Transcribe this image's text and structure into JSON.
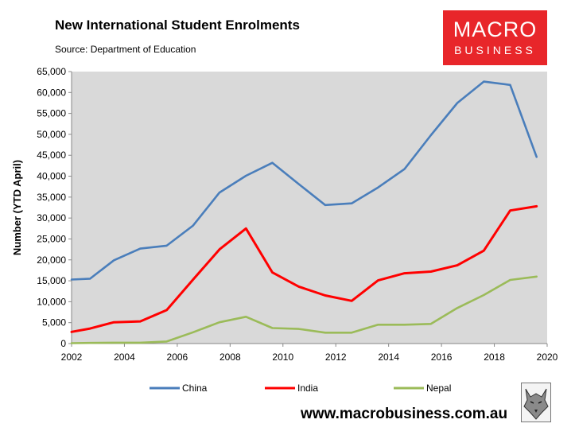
{
  "header": {
    "title": "New International Student Enrolments",
    "source": "Source: Department of Education"
  },
  "logo": {
    "line1": "MACRO",
    "line2": "BUSINESS",
    "bg_color": "#e8262a"
  },
  "footer": {
    "url": "www.macrobusiness.com.au",
    "wolf_icon": "wolf-logo-icon"
  },
  "chart_data": {
    "type": "line",
    "ylabel": "Number (YTD April)",
    "xlabel": "",
    "x": [
      2002,
      2002.7,
      2003.6,
      2004.6,
      2005.6,
      2006.6,
      2007.6,
      2008.6,
      2009.6,
      2010.6,
      2011.6,
      2012.6,
      2013.6,
      2014.6,
      2015.6,
      2016.6,
      2017.6,
      2018.6,
      2019.6
    ],
    "series": [
      {
        "name": "China",
        "color": "#4a7ebb",
        "values": [
          15300,
          15500,
          19900,
          22700,
          23400,
          28200,
          36100,
          40100,
          43200,
          38100,
          33100,
          33500,
          37300,
          41700,
          49800,
          57500,
          62600,
          61800,
          44600
        ]
      },
      {
        "name": "India",
        "color": "#ff0000",
        "values": [
          2800,
          3600,
          5100,
          5300,
          8000,
          15300,
          22500,
          27500,
          17000,
          13600,
          11500,
          10200,
          15100,
          16800,
          17200,
          18700,
          22200,
          31800,
          32800
        ]
      },
      {
        "name": "Nepal",
        "color": "#9bbb59",
        "values": [
          100,
          150,
          200,
          200,
          500,
          2700,
          5100,
          6400,
          3700,
          3500,
          2600,
          2600,
          4500,
          4500,
          4700,
          8500,
          11600,
          15200,
          16000
        ]
      }
    ],
    "xticks": [
      "2002",
      "2004",
      "2006",
      "2008",
      "2010",
      "2012",
      "2014",
      "2016",
      "2018",
      "2020"
    ],
    "yticks": [
      "0",
      "5,000",
      "10,000",
      "15,000",
      "20,000",
      "25,000",
      "30,000",
      "35,000",
      "40,000",
      "45,000",
      "50,000",
      "55,000",
      "60,000",
      "65,000"
    ],
    "xlim": [
      2002,
      2020
    ],
    "ylim": [
      0,
      65000
    ],
    "grid": false,
    "plot_bg": "#d9d9d9",
    "legend_position": "bottom"
  }
}
